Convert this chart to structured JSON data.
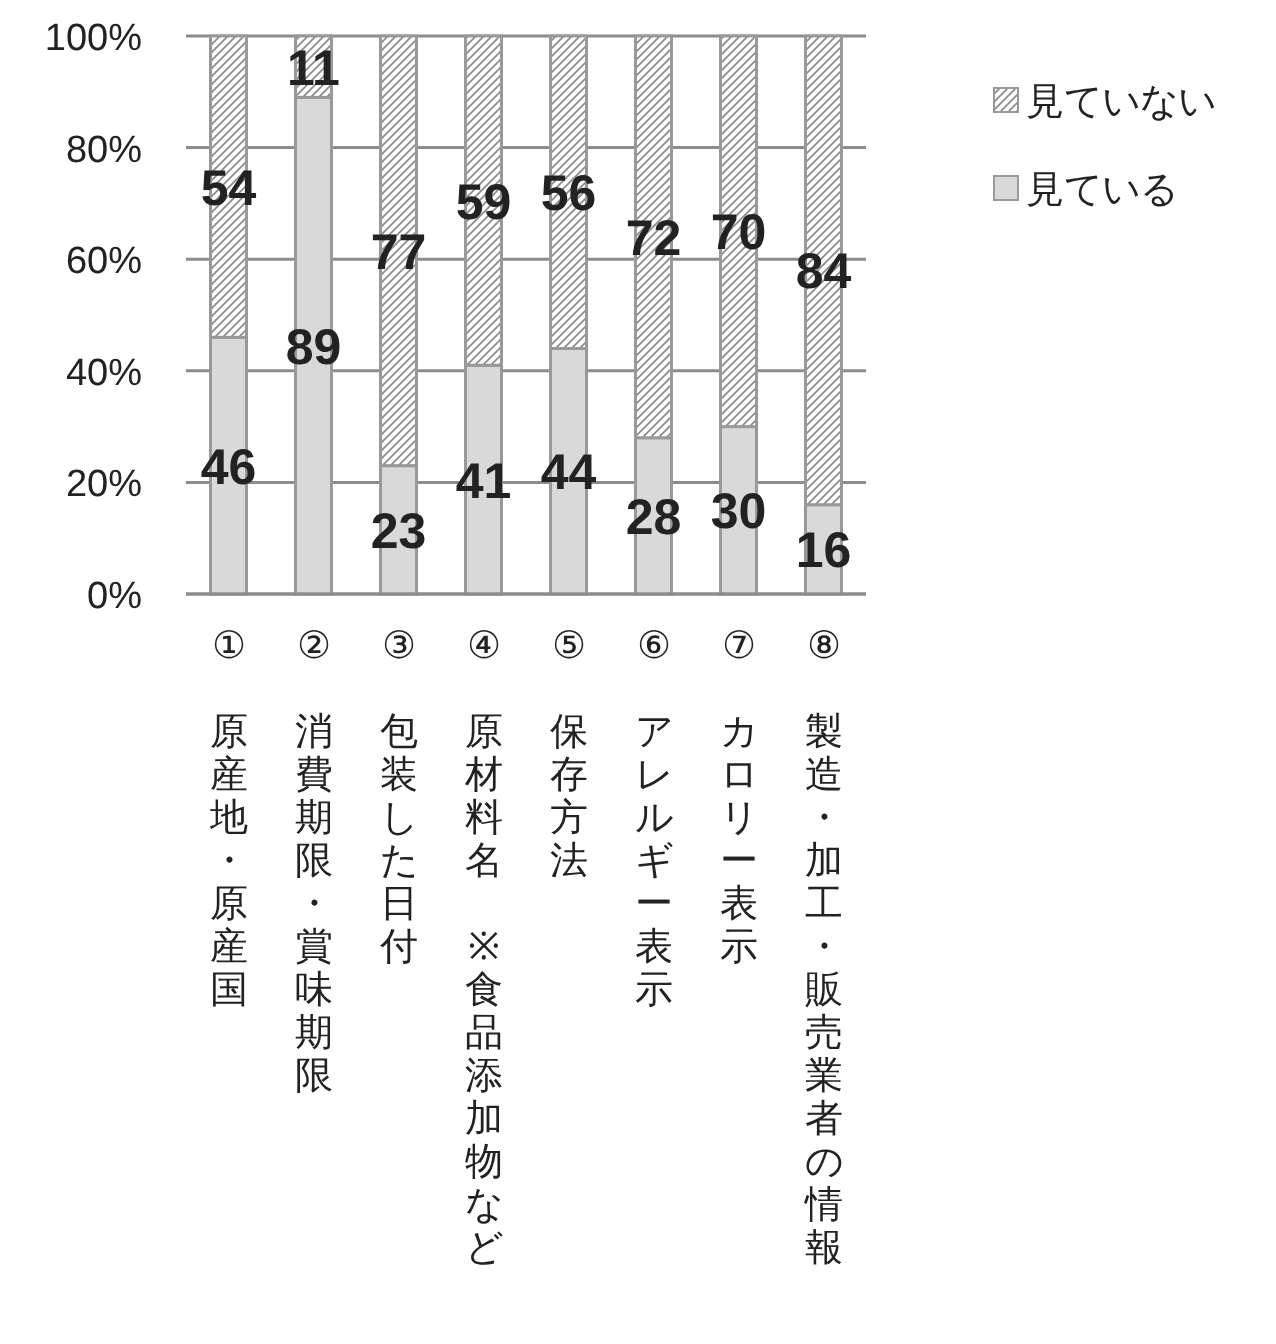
{
  "chart_data": {
    "type": "bar",
    "stacked": true,
    "categories": [
      "①　原産地・原産国",
      "②　消費期限・賞味期限",
      "③　包装した日付",
      "④　原材料名　※食品添加物など",
      "⑤　保存方法",
      "⑥　アレルギー表示",
      "⑦　カロリー表示",
      "⑧　製造・加工・販売業者の情報"
    ],
    "series": [
      {
        "name": "見ている",
        "color": "#d9d9d9",
        "values": [
          46,
          89,
          23,
          41,
          44,
          28,
          30,
          16
        ]
      },
      {
        "name": "見ていない",
        "color": "#8c8c8c",
        "values": [
          54,
          11,
          77,
          59,
          56,
          72,
          70,
          84
        ]
      }
    ],
    "ylim": [
      0,
      100
    ],
    "yticks": [
      {
        "value": 0,
        "label": "0%"
      },
      {
        "value": 20,
        "label": "20%"
      },
      {
        "value": 40,
        "label": "40%"
      },
      {
        "value": 60,
        "label": "60%"
      },
      {
        "value": 80,
        "label": "80%"
      },
      {
        "value": 100,
        "label": "100%"
      }
    ],
    "grid": "y",
    "legend": "right",
    "data_labels": true
  }
}
